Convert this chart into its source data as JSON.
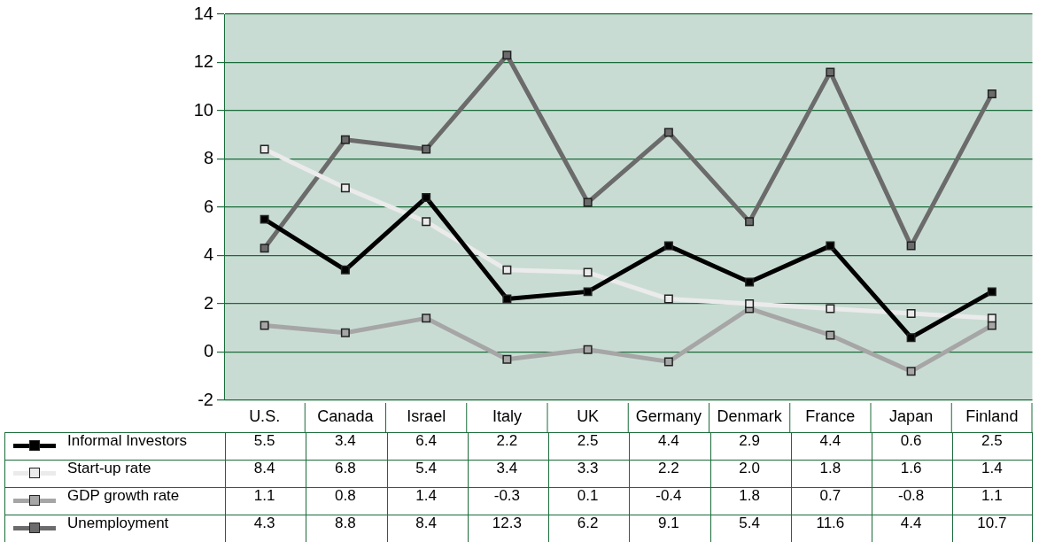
{
  "chart_data": {
    "type": "line",
    "categories": [
      "U.S.",
      "Canada",
      "Israel",
      "Italy",
      "UK",
      "Germany",
      "Denmark",
      "France",
      "Japan",
      "Finland"
    ],
    "series": [
      {
        "name": "Informal Investors",
        "color": "#000000",
        "values": [
          5.5,
          3.4,
          6.4,
          2.2,
          2.5,
          4.4,
          2.9,
          4.4,
          0.6,
          2.5
        ],
        "value_labels": [
          "5.5",
          "3.4",
          "6.4",
          "2.2",
          "2.5",
          "4.4",
          "2.9",
          "4.4",
          "0.6",
          "2.5"
        ]
      },
      {
        "name": "Start-up rate",
        "color": "#ebebeb",
        "values": [
          8.4,
          6.8,
          5.4,
          3.4,
          3.3,
          2.2,
          2.0,
          1.8,
          1.6,
          1.4
        ],
        "value_labels": [
          "8.4",
          "6.8",
          "5.4",
          "3.4",
          "3.3",
          "2.2",
          "2.0",
          "1.8",
          "1.6",
          "1.4"
        ]
      },
      {
        "name": "GDP growth rate",
        "color": "#a6a6a6",
        "values": [
          1.1,
          0.8,
          1.4,
          -0.3,
          0.1,
          -0.4,
          1.8,
          0.7,
          -0.8,
          1.1
        ],
        "value_labels": [
          "1.1",
          "0.8",
          "1.4",
          "-0.3",
          "0.1",
          "-0.4",
          "1.8",
          "0.7",
          "-0.8",
          "1.1"
        ]
      },
      {
        "name": "Unemployment",
        "color": "#6b6b6b",
        "values": [
          4.3,
          8.8,
          8.4,
          12.3,
          6.2,
          9.1,
          5.4,
          11.6,
          4.4,
          10.7
        ],
        "value_labels": [
          "4.3",
          "8.8",
          "8.4",
          "12.3",
          "6.2",
          "9.1",
          "5.4",
          "11.6",
          "4.4",
          "10.7"
        ]
      }
    ],
    "ylim": [
      -2,
      14
    ],
    "yticks": [
      -2,
      0,
      2,
      4,
      6,
      8,
      10,
      12,
      14
    ],
    "grid": "y",
    "legend": "bottom left",
    "marker": "square",
    "line_style": "solid"
  }
}
